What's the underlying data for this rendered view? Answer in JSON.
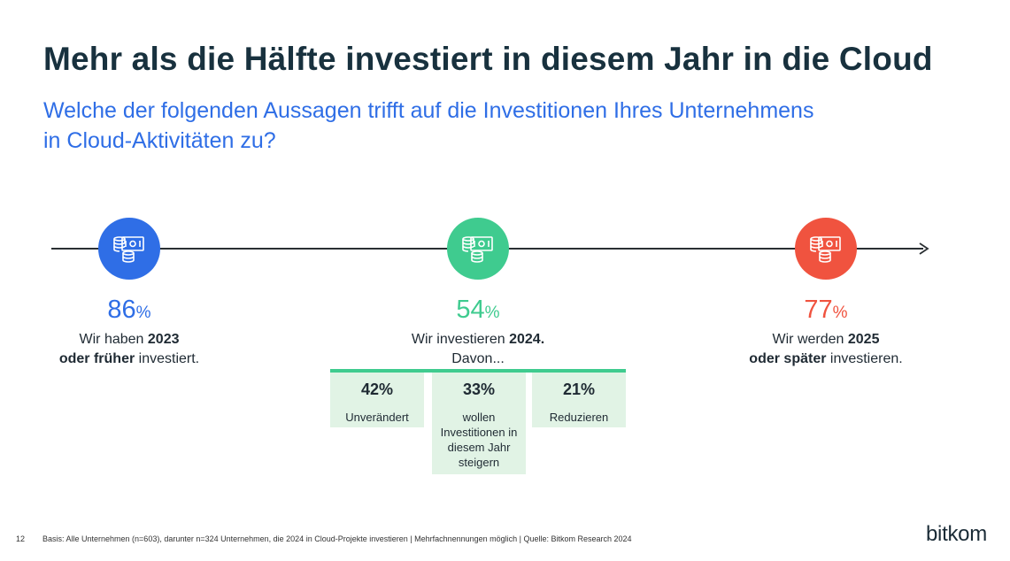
{
  "title": "Mehr als die Hälfte investiert in diesem Jahr in die Cloud",
  "subtitle": {
    "line1": "Welche der folgenden Aussagen trifft auf die Investitionen Ihres Unternehmens",
    "line2": "in Cloud-Aktivitäten zu?"
  },
  "chart_data": {
    "type": "other",
    "stages": [
      {
        "value": 86,
        "unit": "%",
        "color": "#2f6ee6",
        "text_pre": "Wir haben ",
        "text_bold1": "2023",
        "text_bold2": "oder früher",
        "text_post": " investiert.",
        "icon": "money-icon"
      },
      {
        "value": 54,
        "unit": "%",
        "color": "#3fcb8f",
        "text_pre": "Wir investieren ",
        "text_bold1": "2024.",
        "text_line2": "Davon...",
        "icon": "money-icon"
      },
      {
        "value": 77,
        "unit": "%",
        "color": "#f0533f",
        "text_pre": "Wir werden ",
        "text_bold1": "2025",
        "text_bold2": "oder später",
        "text_post": " investieren.",
        "icon": "money-icon"
      }
    ],
    "breakdown_2024": [
      {
        "value": "42%",
        "label": "Unverändert"
      },
      {
        "value": "33%",
        "label": "wollen Investitionen in diesem Jahr steigern"
      },
      {
        "value": "21%",
        "label": "Reduzieren"
      }
    ]
  },
  "footer": {
    "page_number": "12",
    "note": "Basis: Alle Unternehmen (n=603), darunter n=324 Unternehmen, die 2024 in Cloud-Projekte investieren | Mehrfachnennungen möglich | Quelle: Bitkom Research 2024"
  },
  "logo": "bitkom"
}
